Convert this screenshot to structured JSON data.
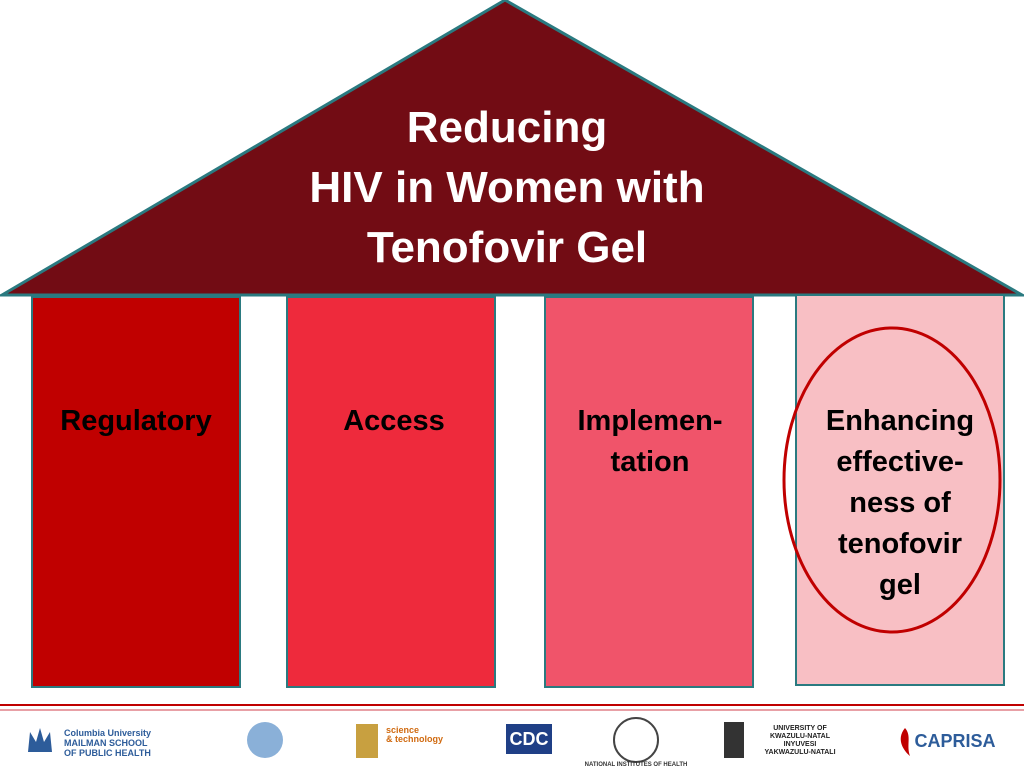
{
  "roof": {
    "title_lines": [
      "Reducing",
      "HIV in Women with",
      "Tenofovir Gel"
    ]
  },
  "pillars": [
    {
      "lines": [
        "Regulatory"
      ]
    },
    {
      "lines": [
        "Access"
      ]
    },
    {
      "lines": [
        "Implemen-",
        "tation"
      ]
    },
    {
      "lines": [
        "Enhancing",
        "effective-",
        "ness of",
        "tenofovir",
        "gel"
      ]
    }
  ],
  "logos": [
    {
      "lines": [
        "Columbia University",
        "MAILMAN SCHOOL",
        "OF PUBLIC HEALTH"
      ]
    },
    {
      "lines": [
        "science",
        "& technology"
      ]
    },
    {
      "lines": [
        "CDC"
      ]
    },
    {
      "lines": [
        "NATIONAL INSTITUTES OF HEALTH"
      ]
    },
    {
      "lines": [
        "UNIVERSITY OF",
        "KWAZULU-NATAL",
        "INYUVESI",
        "YAKWAZULU-NATALI"
      ]
    },
    {
      "lines": [
        "CAPRISA"
      ]
    }
  ]
}
